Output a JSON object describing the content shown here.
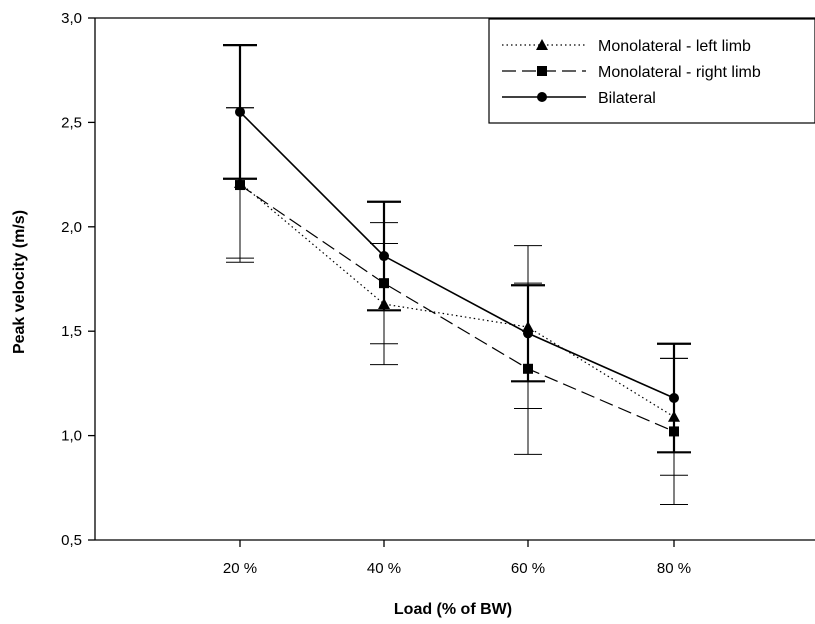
{
  "chart_data": {
    "type": "line",
    "title": "",
    "xlabel": "Load (% of BW)",
    "ylabel": "Peak velocity (m/s)",
    "categories": [
      "20 %",
      "40 %",
      "60 %",
      "80 %"
    ],
    "ylim": [
      0.5,
      3.0
    ],
    "yticks": [
      "0,5",
      "1,0",
      "1,5",
      "2,0",
      "2,5",
      "3,0"
    ],
    "grid": false,
    "legend_position": "top-right",
    "series": [
      {
        "name": "Monolateral - left limb",
        "marker": "triangle",
        "line_style": "dotted",
        "values": [
          2.21,
          1.63,
          1.52,
          1.09
        ],
        "error": [
          0.36,
          0.29,
          0.39,
          0.28
        ]
      },
      {
        "name": "Monolateral - right limb",
        "marker": "square",
        "line_style": "dashed",
        "values": [
          2.2,
          1.73,
          1.32,
          1.02
        ],
        "error": [
          0.37,
          0.29,
          0.41,
          0.35
        ]
      },
      {
        "name": "Bilateral",
        "marker": "circle",
        "line_style": "solid",
        "values": [
          2.55,
          1.86,
          1.49,
          1.18
        ],
        "error": [
          0.32,
          0.26,
          0.23,
          0.26
        ]
      }
    ],
    "colors": {
      "line": "#000000",
      "background": "#ffffff"
    }
  }
}
